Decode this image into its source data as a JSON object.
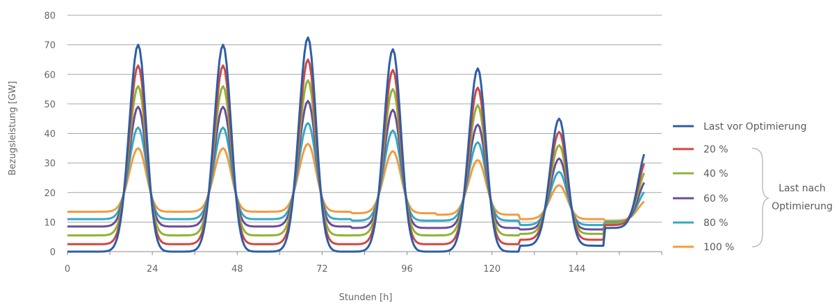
{
  "chart_data": {
    "type": "line",
    "xlabel": "Stunden [h]",
    "ylabel": "Bezugsleistung [GW]",
    "xlim": [
      0,
      168
    ],
    "ylim": [
      0,
      80
    ],
    "x_ticks": [
      0,
      24,
      48,
      72,
      96,
      120,
      144
    ],
    "y_ticks": [
      0,
      10,
      20,
      30,
      40,
      50,
      60,
      70,
      80
    ],
    "grid": "horizontal",
    "legend_position": "right",
    "legend_bracket_label": [
      "Last nach",
      "Optimierung"
    ],
    "day_peaks_hour": [
      20,
      44,
      68,
      92,
      116,
      139,
      164
    ],
    "series": [
      {
        "name": "Last vor Optimierung",
        "color": "#2e5da7",
        "base": [
          0,
          0,
          0,
          0,
          0,
          2,
          8
        ],
        "peak": [
          70,
          70,
          72.5,
          68.5,
          62,
          45,
          35
        ]
      },
      {
        "name": "20 %",
        "color": "#d0473f",
        "base": [
          2.5,
          2.5,
          2.5,
          2.5,
          2.5,
          4,
          9
        ],
        "peak": [
          63,
          63,
          65,
          61.5,
          55.5,
          40.5,
          31.5
        ]
      },
      {
        "name": "40 %",
        "color": "#8db434",
        "base": [
          5.5,
          5.5,
          5.5,
          5.5,
          5.5,
          6,
          9.5
        ],
        "peak": [
          56,
          56,
          58,
          55,
          49.5,
          36,
          28
        ]
      },
      {
        "name": "60 %",
        "color": "#6a4c9c",
        "base": [
          8.5,
          8.5,
          8.5,
          8,
          8,
          7.5,
          9.5
        ],
        "peak": [
          49,
          49,
          51,
          48,
          43,
          31.5,
          24.5
        ]
      },
      {
        "name": "80 %",
        "color": "#34a8c6",
        "base": [
          11,
          11,
          11,
          10.5,
          10.5,
          9,
          10
        ],
        "peak": [
          42,
          42,
          43.5,
          41,
          37,
          27,
          21
        ]
      },
      {
        "name": "100 %",
        "color": "#f39b3b",
        "base": [
          13.5,
          13.5,
          13.5,
          13,
          12.5,
          11,
          10.5
        ],
        "peak": [
          35,
          35,
          36.5,
          34,
          31,
          22.5,
          17.5
        ]
      }
    ]
  }
}
